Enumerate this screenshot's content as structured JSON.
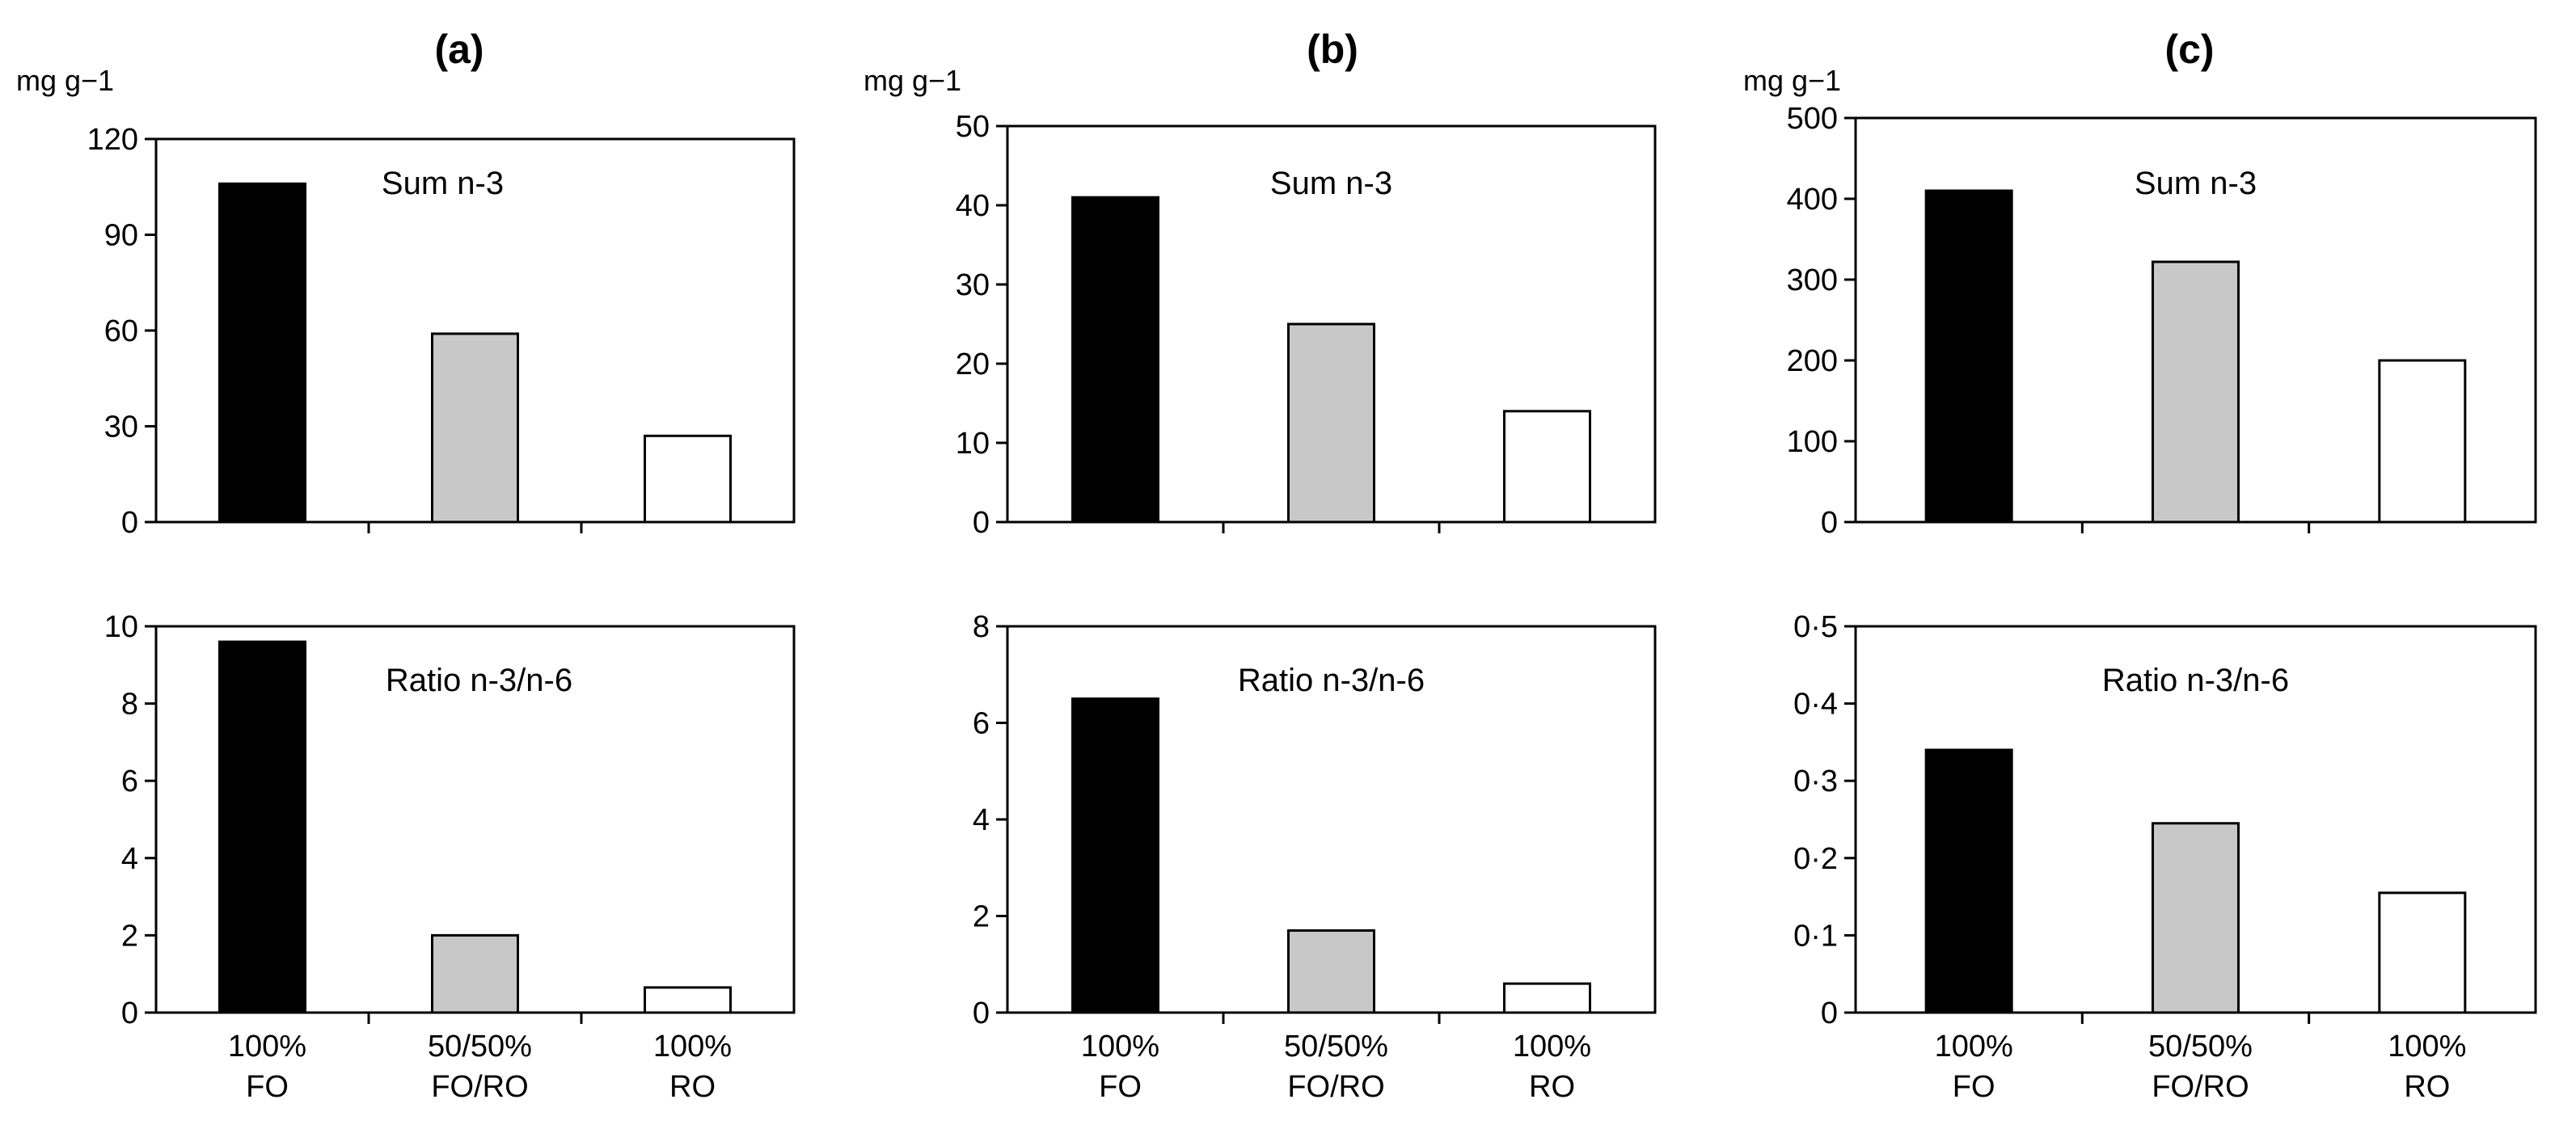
{
  "chart_data": [
    {
      "id": "a",
      "type": "bar",
      "title": "(a)",
      "unit": "mg g−1",
      "categories": [
        [
          "100%",
          "FO"
        ],
        [
          "50/50%",
          "FO/RO"
        ],
        [
          "100%",
          "RO"
        ]
      ],
      "bar_colors": [
        "#000000",
        "#c8c8c8",
        "#ffffff"
      ],
      "panels": [
        {
          "label": "Sum n-3",
          "values": [
            106,
            59,
            27
          ],
          "ylim": [
            0,
            120
          ],
          "yticks": [
            0,
            30,
            60,
            90,
            120
          ],
          "ytick_labels": [
            "0",
            "30",
            "60",
            "90",
            "120"
          ]
        },
        {
          "label": "Ratio n-3/n-6",
          "values": [
            9.6,
            2.0,
            0.65
          ],
          "ylim": [
            0,
            10
          ],
          "yticks": [
            0,
            2,
            4,
            6,
            8,
            10
          ],
          "ytick_labels": [
            "0",
            "2",
            "4",
            "6",
            "8",
            "10"
          ]
        }
      ]
    },
    {
      "id": "b",
      "type": "bar",
      "title": "(b)",
      "unit": "mg g−1",
      "categories": [
        [
          "100%",
          "FO"
        ],
        [
          "50/50%",
          "FO/RO"
        ],
        [
          "100%",
          "RO"
        ]
      ],
      "bar_colors": [
        "#000000",
        "#c8c8c8",
        "#ffffff"
      ],
      "panels": [
        {
          "label": "Sum n-3",
          "values": [
            41,
            25,
            14
          ],
          "ylim": [
            0,
            50
          ],
          "yticks": [
            0,
            10,
            20,
            30,
            40,
            50
          ],
          "ytick_labels": [
            "0",
            "10",
            "20",
            "30",
            "40",
            "50"
          ]
        },
        {
          "label": "Ratio n-3/n-6",
          "values": [
            6.5,
            1.7,
            0.6
          ],
          "ylim": [
            0,
            8
          ],
          "yticks": [
            0,
            2,
            4,
            6,
            8
          ],
          "ytick_labels": [
            "0",
            "2",
            "4",
            "6",
            "8"
          ]
        }
      ]
    },
    {
      "id": "c",
      "type": "bar",
      "title": "(c)",
      "unit": "mg g−1",
      "categories": [
        [
          "100%",
          "FO"
        ],
        [
          "50/50%",
          "FO/RO"
        ],
        [
          "100%",
          "RO"
        ]
      ],
      "bar_colors": [
        "#000000",
        "#c8c8c8",
        "#ffffff"
      ],
      "panels": [
        {
          "label": "Sum n-3",
          "values": [
            410,
            322,
            200
          ],
          "ylim": [
            0,
            500
          ],
          "yticks": [
            0,
            100,
            200,
            300,
            400,
            500
          ],
          "ytick_labels": [
            "0",
            "100",
            "200",
            "300",
            "400",
            "500"
          ]
        },
        {
          "label": "Ratio n-3/n-6",
          "values": [
            0.34,
            0.245,
            0.155
          ],
          "ylim": [
            0,
            0.5
          ],
          "yticks": [
            0,
            0.1,
            0.2,
            0.3,
            0.4,
            0.5
          ],
          "ytick_labels": [
            "0",
            "0·1",
            "0·2",
            "0·3",
            "0·4",
            "0·5"
          ]
        }
      ]
    }
  ]
}
